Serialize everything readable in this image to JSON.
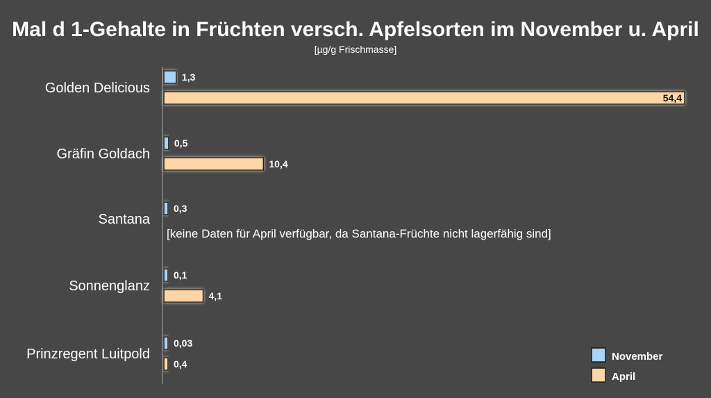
{
  "chart_data": {
    "type": "bar",
    "orientation": "horizontal",
    "title": "Mal d 1-Gehalte in Früchten versch. Apfelsorten im November u. April",
    "subtitle": "[µg/g Frischmasse]",
    "categories": [
      "Golden Delicious",
      "Gräfin Goldach",
      "Santana",
      "Sonnenglanz",
      "Prinzregent Luitpold"
    ],
    "series": [
      {
        "name": "November",
        "color": "#a9d3f7",
        "values": [
          1.3,
          0.5,
          0.3,
          0.1,
          0.03
        ],
        "labels": [
          "1,3",
          "0,5",
          "0,3",
          "0,1",
          "0,03"
        ]
      },
      {
        "name": "April",
        "color": "#fcd6a7",
        "values": [
          54.4,
          10.4,
          null,
          4.1,
          0.4
        ],
        "labels": [
          "54,4",
          "10,4",
          "",
          "4,1",
          "0,4"
        ]
      }
    ],
    "annotation": "[keine Daten für April verfügbar, da Santana-Früchte nicht lagerfähig sind]",
    "xlim": [
      0,
      54.4
    ],
    "grid": false,
    "legend_position": "bottom-right"
  }
}
